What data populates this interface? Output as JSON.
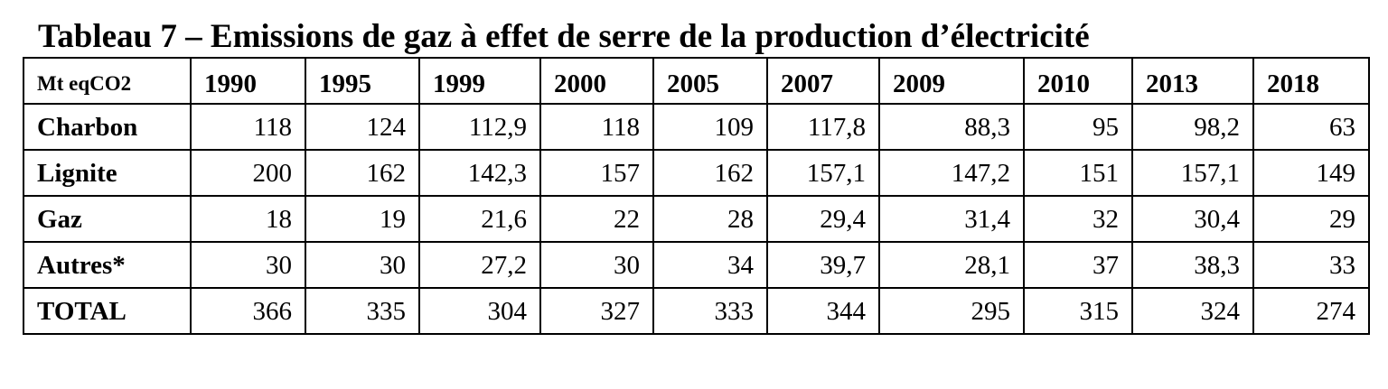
{
  "title": "Tableau 7 – Emissions de gaz à effet de serre de la production d’électricité",
  "table": {
    "unit": "Mt eqCO2",
    "years": [
      "1990",
      "1995",
      "1999",
      "2000",
      "2005",
      "2007",
      "2009",
      "2010",
      "2013",
      "2018"
    ],
    "rows": [
      {
        "label": "Charbon",
        "values": [
          "118",
          "124",
          "112,9",
          "118",
          "109",
          "117,8",
          "88,3",
          "95",
          "98,2",
          "63"
        ]
      },
      {
        "label": "Lignite",
        "values": [
          "200",
          "162",
          "142,3",
          "157",
          "162",
          "157,1",
          "147,2",
          "151",
          "157,1",
          "149"
        ]
      },
      {
        "label": "Gaz",
        "values": [
          "18",
          "19",
          "21,6",
          "22",
          "28",
          "29,4",
          "31,4",
          "32",
          "30,4",
          "29"
        ]
      },
      {
        "label": "Autres*",
        "values": [
          "30",
          "30",
          "27,2",
          "30",
          "34",
          "39,7",
          "28,1",
          "37",
          "38,3",
          "33"
        ]
      },
      {
        "label": "TOTAL",
        "values": [
          "366",
          "335",
          "304",
          "327",
          "333",
          "344",
          "295",
          "315",
          "324",
          "274"
        ]
      }
    ]
  }
}
